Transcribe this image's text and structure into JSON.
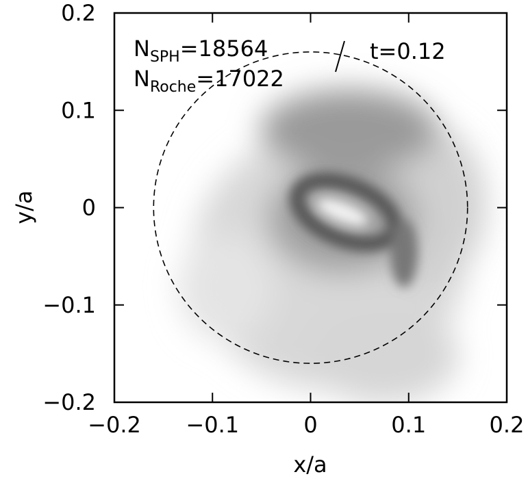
{
  "chart_data": {
    "type": "density-map",
    "xlabel": "x/a",
    "ylabel": "y/a",
    "xlim": [
      -0.2,
      0.2
    ],
    "ylim": [
      -0.2,
      0.2
    ],
    "xticks": [
      -0.2,
      -0.1,
      0,
      0.1,
      0.2
    ],
    "yticks": [
      -0.2,
      -0.1,
      0,
      0.1,
      0.2
    ],
    "circle": {
      "center": [
        0,
        0
      ],
      "radius": 0.16
    },
    "annotations": [
      {
        "base": "N",
        "sub": "SPH",
        "rest": "=18564"
      },
      {
        "base": "N",
        "sub": "Roche",
        "rest": "=17022"
      }
    ],
    "time_label": "t=0.12"
  }
}
